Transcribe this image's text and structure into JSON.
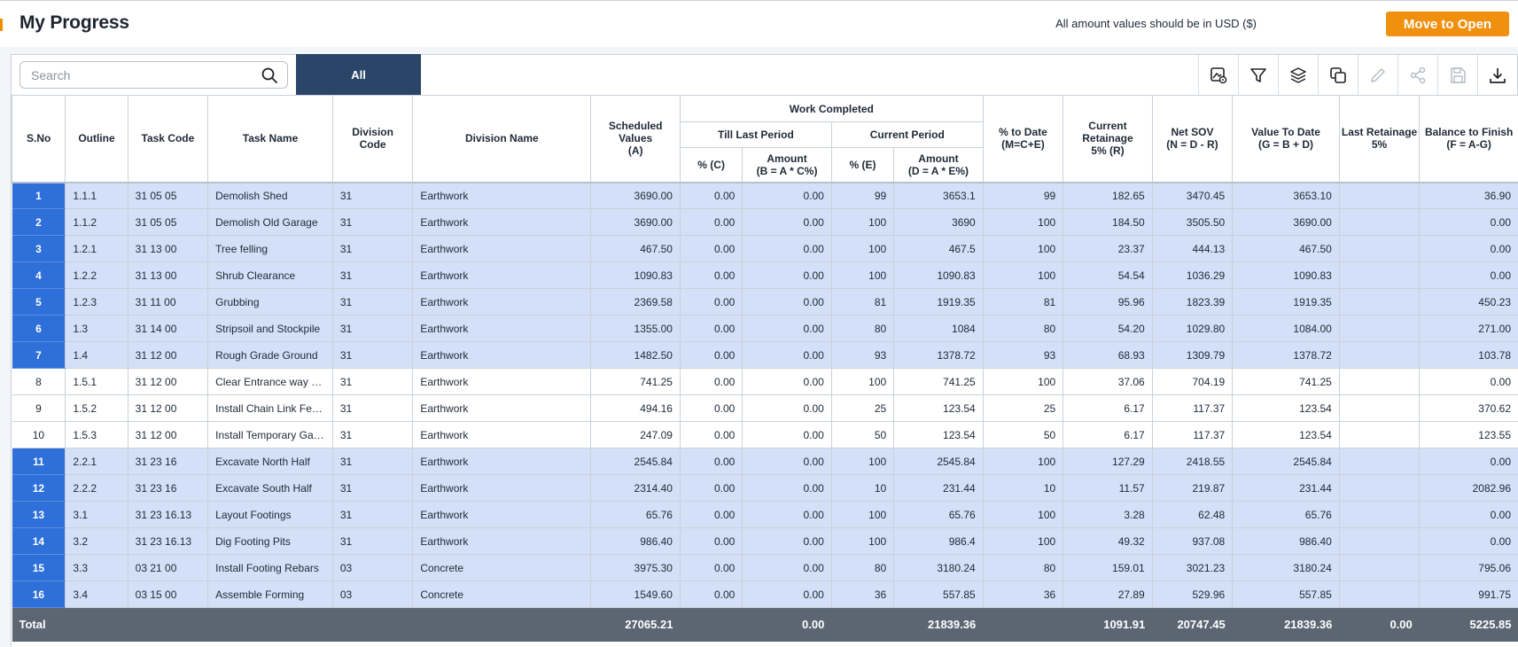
{
  "header": {
    "title": "My Progress",
    "usd_note": "All amount values should be in USD ($)",
    "move_button": "Move to Open"
  },
  "toolbar": {
    "search_placeholder": "Search",
    "tab_all": "All",
    "icons": [
      "image-settings-icon",
      "filter-icon",
      "layers-icon",
      "copy-icon",
      "edit-icon",
      "share-icon",
      "save-icon",
      "download-icon"
    ]
  },
  "columns": {
    "sno": "S.No",
    "outline": "Outline",
    "task_code": "Task Code",
    "task_name": "Task Name",
    "division_code": "Division Code",
    "division_name": "Division Name",
    "scheduled_values": "Scheduled Values (A)",
    "work_completed": "Work Completed",
    "till_last_period": "Till Last Period",
    "current_period": "Current Period",
    "tlp_pct": "% (C)",
    "tlp_amount": "Amount (B = A * C%)",
    "cp_pct": "% (E)",
    "cp_amount": "Amount (D = A * E%)",
    "pct_to_date": "% to Date (M=C+E)",
    "current_retainage": "Current Retainage 5% (R)",
    "net_sov": "Net SOV (N = D - R)",
    "value_to_date": "Value To Date (G = B + D)",
    "last_retainage": "Last Retainage 5%",
    "balance_to_finish": "Balance to Finish (F = A-G)"
  },
  "rows": [
    {
      "sno": "1",
      "selected": true,
      "outline": "1.1.1",
      "task_code": "31 05 05",
      "task_name": "Demolish Shed",
      "division_code": "31",
      "division_name": "Earthwork",
      "scheduled": "3690.00",
      "tlp_pct": "0.00",
      "tlp_amount": "0.00",
      "cp_pct": "99",
      "cp_amount": "3653.1",
      "pct_to_date": "99",
      "cur_ret": "182.65",
      "net_sov": "3470.45",
      "vtd": "3653.10",
      "last_ret": "",
      "balance": "36.90"
    },
    {
      "sno": "2",
      "selected": true,
      "outline": "1.1.2",
      "task_code": "31 05 05",
      "task_name": "Demolish Old Garage",
      "division_code": "31",
      "division_name": "Earthwork",
      "scheduled": "3690.00",
      "tlp_pct": "0.00",
      "tlp_amount": "0.00",
      "cp_pct": "100",
      "cp_amount": "3690",
      "pct_to_date": "100",
      "cur_ret": "184.50",
      "net_sov": "3505.50",
      "vtd": "3690.00",
      "last_ret": "",
      "balance": "0.00"
    },
    {
      "sno": "3",
      "selected": true,
      "outline": "1.2.1",
      "task_code": "31 13 00",
      "task_name": "Tree felling",
      "division_code": "31",
      "division_name": "Earthwork",
      "scheduled": "467.50",
      "tlp_pct": "0.00",
      "tlp_amount": "0.00",
      "cp_pct": "100",
      "cp_amount": "467.5",
      "pct_to_date": "100",
      "cur_ret": "23.37",
      "net_sov": "444.13",
      "vtd": "467.50",
      "last_ret": "",
      "balance": "0.00"
    },
    {
      "sno": "4",
      "selected": true,
      "outline": "1.2.2",
      "task_code": "31 13 00",
      "task_name": "Shrub Clearance",
      "division_code": "31",
      "division_name": "Earthwork",
      "scheduled": "1090.83",
      "tlp_pct": "0.00",
      "tlp_amount": "0.00",
      "cp_pct": "100",
      "cp_amount": "1090.83",
      "pct_to_date": "100",
      "cur_ret": "54.54",
      "net_sov": "1036.29",
      "vtd": "1090.83",
      "last_ret": "",
      "balance": "0.00"
    },
    {
      "sno": "5",
      "selected": true,
      "outline": "1.2.3",
      "task_code": "31 11 00",
      "task_name": "Grubbing",
      "division_code": "31",
      "division_name": "Earthwork",
      "scheduled": "2369.58",
      "tlp_pct": "0.00",
      "tlp_amount": "0.00",
      "cp_pct": "81",
      "cp_amount": "1919.35",
      "pct_to_date": "81",
      "cur_ret": "95.96",
      "net_sov": "1823.39",
      "vtd": "1919.35",
      "last_ret": "",
      "balance": "450.23"
    },
    {
      "sno": "6",
      "selected": true,
      "outline": "1.3",
      "task_code": "31 14 00",
      "task_name": "Stripsoil and Stockpile",
      "division_code": "31",
      "division_name": "Earthwork",
      "scheduled": "1355.00",
      "tlp_pct": "0.00",
      "tlp_amount": "0.00",
      "cp_pct": "80",
      "cp_amount": "1084",
      "pct_to_date": "80",
      "cur_ret": "54.20",
      "net_sov": "1029.80",
      "vtd": "1084.00",
      "last_ret": "",
      "balance": "271.00"
    },
    {
      "sno": "7",
      "selected": true,
      "outline": "1.4",
      "task_code": "31 12 00",
      "task_name": "Rough Grade Ground",
      "division_code": "31",
      "division_name": "Earthwork",
      "scheduled": "1482.50",
      "tlp_pct": "0.00",
      "tlp_amount": "0.00",
      "cp_pct": "93",
      "cp_amount": "1378.72",
      "pct_to_date": "93",
      "cur_ret": "68.93",
      "net_sov": "1309.79",
      "vtd": "1378.72",
      "last_ret": "",
      "balance": "103.78"
    },
    {
      "sno": "8",
      "selected": false,
      "outline": "1.5.1",
      "task_code": "31 12 00",
      "task_name": "Clear Entrance way a...",
      "division_code": "31",
      "division_name": "Earthwork",
      "scheduled": "741.25",
      "tlp_pct": "0.00",
      "tlp_amount": "0.00",
      "cp_pct": "100",
      "cp_amount": "741.25",
      "pct_to_date": "100",
      "cur_ret": "37.06",
      "net_sov": "704.19",
      "vtd": "741.25",
      "last_ret": "",
      "balance": "0.00"
    },
    {
      "sno": "9",
      "selected": false,
      "outline": "1.5.2",
      "task_code": "31 12 00",
      "task_name": "Install Chain Link Fen...",
      "division_code": "31",
      "division_name": "Earthwork",
      "scheduled": "494.16",
      "tlp_pct": "0.00",
      "tlp_amount": "0.00",
      "cp_pct": "25",
      "cp_amount": "123.54",
      "pct_to_date": "25",
      "cur_ret": "6.17",
      "net_sov": "117.37",
      "vtd": "123.54",
      "last_ret": "",
      "balance": "370.62"
    },
    {
      "sno": "10",
      "selected": false,
      "outline": "1.5.3",
      "task_code": "31 12 00",
      "task_name": "Install Temporary Gat...",
      "division_code": "31",
      "division_name": "Earthwork",
      "scheduled": "247.09",
      "tlp_pct": "0.00",
      "tlp_amount": "0.00",
      "cp_pct": "50",
      "cp_amount": "123.54",
      "pct_to_date": "50",
      "cur_ret": "6.17",
      "net_sov": "117.37",
      "vtd": "123.54",
      "last_ret": "",
      "balance": "123.55"
    },
    {
      "sno": "11",
      "selected": true,
      "outline": "2.2.1",
      "task_code": "31 23 16",
      "task_name": "Excavate North Half",
      "division_code": "31",
      "division_name": "Earthwork",
      "scheduled": "2545.84",
      "tlp_pct": "0.00",
      "tlp_amount": "0.00",
      "cp_pct": "100",
      "cp_amount": "2545.84",
      "pct_to_date": "100",
      "cur_ret": "127.29",
      "net_sov": "2418.55",
      "vtd": "2545.84",
      "last_ret": "",
      "balance": "0.00"
    },
    {
      "sno": "12",
      "selected": true,
      "outline": "2.2.2",
      "task_code": "31 23 16",
      "task_name": "Excavate South Half",
      "division_code": "31",
      "division_name": "Earthwork",
      "scheduled": "2314.40",
      "tlp_pct": "0.00",
      "tlp_amount": "0.00",
      "cp_pct": "10",
      "cp_amount": "231.44",
      "pct_to_date": "10",
      "cur_ret": "11.57",
      "net_sov": "219.87",
      "vtd": "231.44",
      "last_ret": "",
      "balance": "2082.96"
    },
    {
      "sno": "13",
      "selected": true,
      "outline": "3.1",
      "task_code": "31 23 16.13",
      "task_name": "Layout Footings",
      "division_code": "31",
      "division_name": "Earthwork",
      "scheduled": "65.76",
      "tlp_pct": "0.00",
      "tlp_amount": "0.00",
      "cp_pct": "100",
      "cp_amount": "65.76",
      "pct_to_date": "100",
      "cur_ret": "3.28",
      "net_sov": "62.48",
      "vtd": "65.76",
      "last_ret": "",
      "balance": "0.00"
    },
    {
      "sno": "14",
      "selected": true,
      "outline": "3.2",
      "task_code": "31 23 16.13",
      "task_name": "Dig Footing Pits",
      "division_code": "31",
      "division_name": "Earthwork",
      "scheduled": "986.40",
      "tlp_pct": "0.00",
      "tlp_amount": "0.00",
      "cp_pct": "100",
      "cp_amount": "986.4",
      "pct_to_date": "100",
      "cur_ret": "49.32",
      "net_sov": "937.08",
      "vtd": "986.40",
      "last_ret": "",
      "balance": "0.00"
    },
    {
      "sno": "15",
      "selected": true,
      "outline": "3.3",
      "task_code": "03 21 00",
      "task_name": "Install Footing Rebars",
      "division_code": "03",
      "division_name": "Concrete",
      "scheduled": "3975.30",
      "tlp_pct": "0.00",
      "tlp_amount": "0.00",
      "cp_pct": "80",
      "cp_amount": "3180.24",
      "pct_to_date": "80",
      "cur_ret": "159.01",
      "net_sov": "3021.23",
      "vtd": "3180.24",
      "last_ret": "",
      "balance": "795.06"
    },
    {
      "sno": "16",
      "selected": true,
      "outline": "3.4",
      "task_code": "03 15 00",
      "task_name": "Assemble Forming",
      "division_code": "03",
      "division_name": "Concrete",
      "scheduled": "1549.60",
      "tlp_pct": "0.00",
      "tlp_amount": "0.00",
      "cp_pct": "36",
      "cp_amount": "557.85",
      "pct_to_date": "36",
      "cur_ret": "27.89",
      "net_sov": "529.96",
      "vtd": "557.85",
      "last_ret": "",
      "balance": "991.75"
    }
  ],
  "total": {
    "label": "Total",
    "scheduled": "27065.21",
    "tlp_amount": "0.00",
    "cp_amount": "21839.36",
    "cur_ret": "1091.91",
    "net_sov": "20747.45",
    "vtd": "21839.36",
    "last_ret": "0.00",
    "balance": "5225.85"
  },
  "colors": {
    "accent_orange": "#f0900d",
    "tab_navy": "#2b4569",
    "selected_row": "#d3e0f7",
    "selected_sno": "#2e6fd9",
    "total_bar": "#5c6672"
  }
}
